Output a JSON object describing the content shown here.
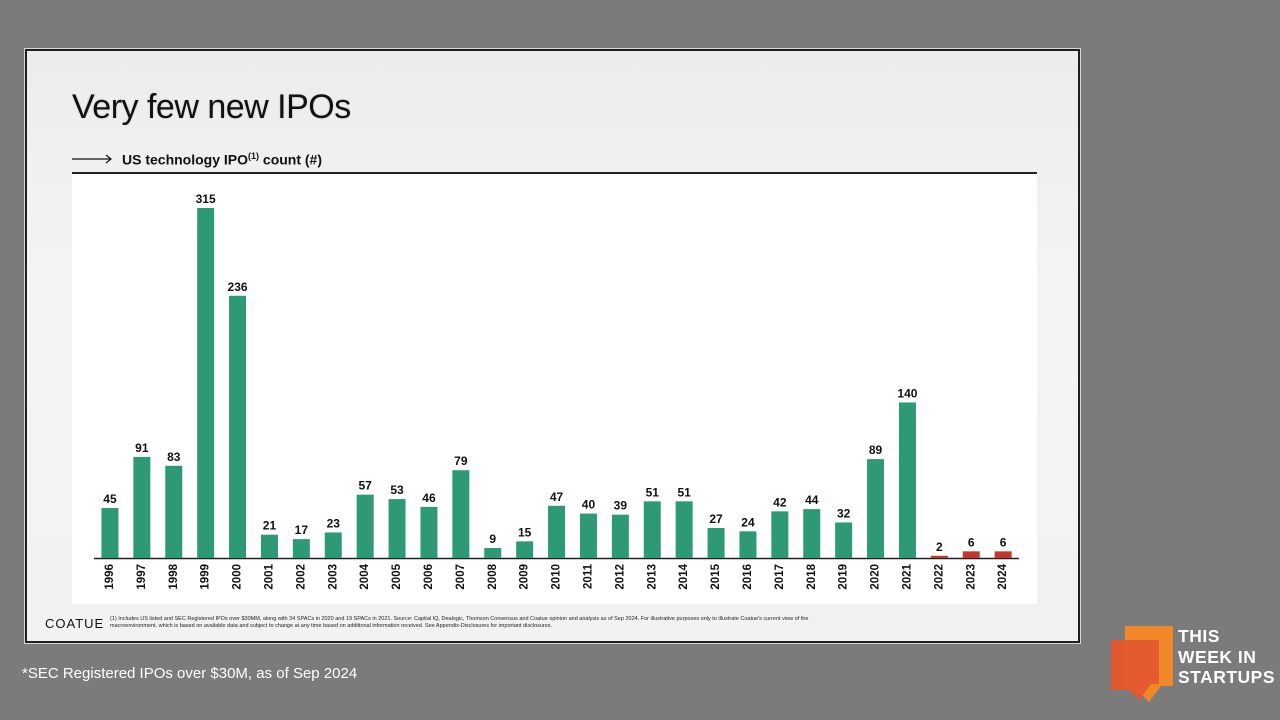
{
  "slide": {
    "title": "Very few new IPOs",
    "subtitle_main": "US technology IPO",
    "subtitle_sup": "(1)",
    "subtitle_tail": " count (#)",
    "logo": "COATUE",
    "footnote_line1": "(1) Includes US listed and SEC Registered IPOs over $30MM, along with 34 SPACs in 2020 and 19 SPACs in 2021. Source: Capital IQ, Dealogic, Thomson Consensus and Coatue opinion and analysis as of Sep 2024. For illustrative purposes only to illustrate Coatue's current view of the",
    "footnote_line2": "macroenvironment, which is based on available data and subject to change at any time based on additional information received. See Appendix-Disclosures for important disclosures."
  },
  "caption": "*SEC Registered IPOs over $30M, as of Sep 2024",
  "brand": {
    "line1": "THIS",
    "line2": "WEEK IN",
    "line3": "STARTUPS",
    "color": "#f0882a"
  },
  "colors": {
    "green": "#2e9a74",
    "red": "#c0392b"
  },
  "chart_data": {
    "type": "bar",
    "title": "US technology IPO(1) count (#)",
    "categories": [
      "1996",
      "1997",
      "1998",
      "1999",
      "2000",
      "2001",
      "2002",
      "2003",
      "2004",
      "2005",
      "2006",
      "2007",
      "2008",
      "2009",
      "2010",
      "2011",
      "2012",
      "2013",
      "2014",
      "2015",
      "2016",
      "2017",
      "2018",
      "2019",
      "2020",
      "2021",
      "2022",
      "2023",
      "2024"
    ],
    "values": [
      45,
      91,
      83,
      315,
      236,
      21,
      17,
      23,
      57,
      53,
      46,
      79,
      9,
      15,
      47,
      40,
      39,
      51,
      51,
      27,
      24,
      42,
      44,
      32,
      89,
      140,
      2,
      6,
      6
    ],
    "highlight_categories": [
      "2022",
      "2023",
      "2024"
    ],
    "ylim": [
      0,
      315
    ],
    "grid": false,
    "legend": "none"
  }
}
